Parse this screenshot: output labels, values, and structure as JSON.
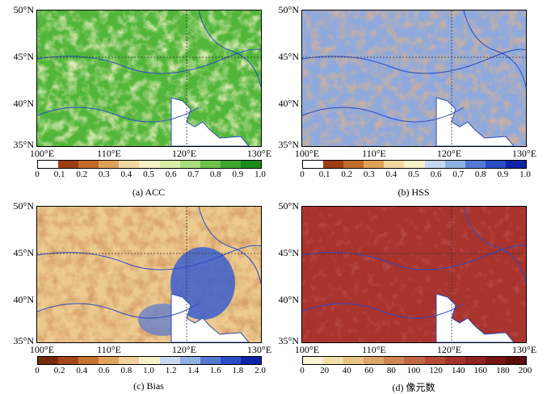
{
  "lat_labels": [
    "50°N",
    "45°N",
    "40°N",
    "35°N"
  ],
  "lon_labels": [
    "100°E",
    "110°E",
    "120°E",
    "130°E"
  ],
  "panels": [
    {
      "caption": "(a) ACC",
      "ticks": [
        "0",
        "0.1",
        "0.2",
        "0.3",
        "0.4",
        "0.5",
        "0.6",
        "0.7",
        "0.8",
        "0.9",
        "1.0"
      ],
      "colors": [
        "#ffffff",
        "#9b3d12",
        "#c06b2b",
        "#dfa05a",
        "#f2d9a1",
        "#f7f1c8",
        "#d9efa7",
        "#a9de7c",
        "#6cc24a",
        "#3ea52e",
        "#1d8a1c"
      ],
      "base": "#5dbb3c"
    },
    {
      "caption": "(b) HSS",
      "ticks": [
        "0",
        "0.1",
        "0.2",
        "0.3",
        "0.4",
        "0.5",
        "0.6",
        "0.7",
        "0.8",
        "0.9",
        "1.0"
      ],
      "colors": [
        "#ffffff",
        "#9b3d12",
        "#c06b2b",
        "#dfa05a",
        "#f2d9a1",
        "#f7f1c8",
        "#c6d8ee",
        "#8fb0e3",
        "#5578d4",
        "#2a4cc4",
        "#0f22a8"
      ],
      "base": "#9db6e0"
    },
    {
      "caption": "(c) Bias",
      "ticks": [
        "0",
        "0.2",
        "0.4",
        "0.6",
        "0.8",
        "1.0",
        "1.2",
        "1.4",
        "1.6",
        "1.8",
        "2.0"
      ],
      "colors": [
        "#7a2a0c",
        "#a4471a",
        "#c7742f",
        "#e0a35c",
        "#f2d29b",
        "#f7f1c8",
        "#c8d9ef",
        "#8fb0e3",
        "#5578d4",
        "#2a4cc4",
        "#0f22a8"
      ],
      "base": "#e9c489"
    },
    {
      "caption": "(d) 像元数",
      "ticks": [
        "0",
        "20",
        "40",
        "60",
        "80",
        "100",
        "120",
        "140",
        "160",
        "180",
        "200"
      ],
      "colors": [
        "#fbf3d4",
        "#f3dfa8",
        "#e8c586",
        "#dca56a",
        "#cf8554",
        "#c26645",
        "#b44a36",
        "#a3332b",
        "#8f2222",
        "#761515",
        "#5e0b0b"
      ],
      "base": "#a9332d"
    }
  ]
}
